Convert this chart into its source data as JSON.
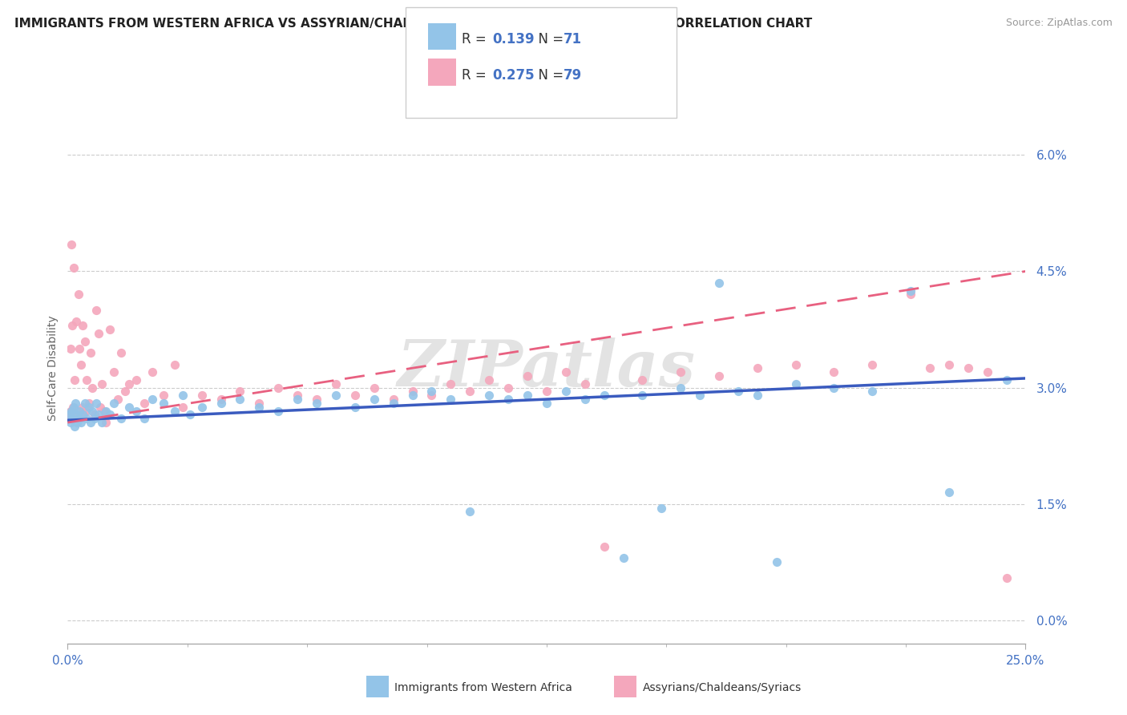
{
  "title": "IMMIGRANTS FROM WESTERN AFRICA VS ASSYRIAN/CHALDEAN/SYRIAC SELF-CARE DISABILITY CORRELATION CHART",
  "source": "Source: ZipAtlas.com",
  "ylabel": "Self-Care Disability",
  "yticks": [
    "0.0%",
    "1.5%",
    "3.0%",
    "4.5%",
    "6.0%"
  ],
  "ytick_vals": [
    0.0,
    1.5,
    3.0,
    4.5,
    6.0
  ],
  "xlim": [
    0.0,
    25.0
  ],
  "ylim": [
    -0.3,
    6.8
  ],
  "blue_R": 0.139,
  "blue_N": 71,
  "pink_R": 0.275,
  "pink_N": 79,
  "blue_color": "#93c4e8",
  "pink_color": "#f4a7bc",
  "blue_line_color": "#3a5bbf",
  "pink_line_color": "#e86080",
  "blue_label": "Immigrants from Western Africa",
  "pink_label": "Assyrians/Chaldeans/Syriacs",
  "watermark": "ZIPatlas",
  "blue_trend_x0": 0.0,
  "blue_trend_y0": 2.58,
  "blue_trend_x1": 25.0,
  "blue_trend_y1": 3.12,
  "pink_trend_x0": 0.0,
  "pink_trend_y0": 2.55,
  "pink_trend_x1": 25.0,
  "pink_trend_y1": 4.5,
  "blue_points_x": [
    0.05,
    0.08,
    0.1,
    0.12,
    0.15,
    0.18,
    0.2,
    0.22,
    0.25,
    0.28,
    0.3,
    0.35,
    0.4,
    0.45,
    0.5,
    0.55,
    0.6,
    0.65,
    0.7,
    0.75,
    0.8,
    0.9,
    1.0,
    1.1,
    1.2,
    1.4,
    1.6,
    1.8,
    2.0,
    2.2,
    2.5,
    2.8,
    3.0,
    3.2,
    3.5,
    4.0,
    4.5,
    5.0,
    5.5,
    6.0,
    6.5,
    7.0,
    7.5,
    8.0,
    8.5,
    9.0,
    9.5,
    10.0,
    10.5,
    11.0,
    11.5,
    12.0,
    12.5,
    13.0,
    13.5,
    14.0,
    14.5,
    15.0,
    15.5,
    16.0,
    16.5,
    17.0,
    17.5,
    18.0,
    18.5,
    19.0,
    20.0,
    21.0,
    22.0,
    23.0,
    24.5
  ],
  "blue_points_y": [
    2.65,
    2.55,
    2.7,
    2.6,
    2.75,
    2.5,
    2.8,
    2.65,
    2.55,
    2.6,
    2.7,
    2.55,
    2.65,
    2.8,
    2.6,
    2.75,
    2.55,
    2.7,
    2.6,
    2.8,
    2.65,
    2.55,
    2.7,
    2.65,
    2.8,
    2.6,
    2.75,
    2.7,
    2.6,
    2.85,
    2.8,
    2.7,
    2.9,
    2.65,
    2.75,
    2.8,
    2.85,
    2.75,
    2.7,
    2.85,
    2.8,
    2.9,
    2.75,
    2.85,
    2.8,
    2.9,
    2.95,
    2.85,
    1.4,
    2.9,
    2.85,
    2.9,
    2.8,
    2.95,
    2.85,
    2.9,
    0.8,
    2.9,
    1.45,
    3.0,
    2.9,
    4.35,
    2.95,
    2.9,
    0.75,
    3.05,
    3.0,
    2.95,
    4.25,
    1.65,
    3.1
  ],
  "pink_points_x": [
    0.03,
    0.05,
    0.07,
    0.08,
    0.1,
    0.12,
    0.14,
    0.16,
    0.18,
    0.2,
    0.22,
    0.25,
    0.28,
    0.3,
    0.32,
    0.35,
    0.38,
    0.4,
    0.42,
    0.45,
    0.48,
    0.5,
    0.55,
    0.6,
    0.65,
    0.7,
    0.75,
    0.8,
    0.85,
    0.9,
    0.95,
    1.0,
    1.1,
    1.2,
    1.3,
    1.4,
    1.5,
    1.6,
    1.8,
    2.0,
    2.2,
    2.5,
    2.8,
    3.0,
    3.5,
    4.0,
    4.5,
    5.0,
    5.5,
    6.0,
    6.5,
    7.0,
    7.5,
    8.0,
    8.5,
    9.0,
    9.5,
    10.0,
    10.5,
    11.0,
    11.5,
    12.0,
    12.5,
    13.0,
    13.5,
    14.0,
    15.0,
    16.0,
    17.0,
    18.0,
    19.0,
    20.0,
    21.0,
    22.0,
    22.5,
    23.0,
    23.5,
    24.0,
    24.5
  ],
  "pink_points_y": [
    2.6,
    2.65,
    3.5,
    2.7,
    4.85,
    3.8,
    2.75,
    4.55,
    3.1,
    2.65,
    3.85,
    2.7,
    4.2,
    3.5,
    2.6,
    3.3,
    2.75,
    3.8,
    2.65,
    3.6,
    2.7,
    3.1,
    2.8,
    3.45,
    3.0,
    2.65,
    4.0,
    3.7,
    2.75,
    3.05,
    2.7,
    2.55,
    3.75,
    3.2,
    2.85,
    3.45,
    2.95,
    3.05,
    3.1,
    2.8,
    3.2,
    2.9,
    3.3,
    2.75,
    2.9,
    2.85,
    2.95,
    2.8,
    3.0,
    2.9,
    2.85,
    3.05,
    2.9,
    3.0,
    2.85,
    2.95,
    2.9,
    3.05,
    2.95,
    3.1,
    3.0,
    3.15,
    2.95,
    3.2,
    3.05,
    0.95,
    3.1,
    3.2,
    3.15,
    3.25,
    3.3,
    3.2,
    3.3,
    4.2,
    3.25,
    3.3,
    3.25,
    3.2,
    0.55
  ]
}
